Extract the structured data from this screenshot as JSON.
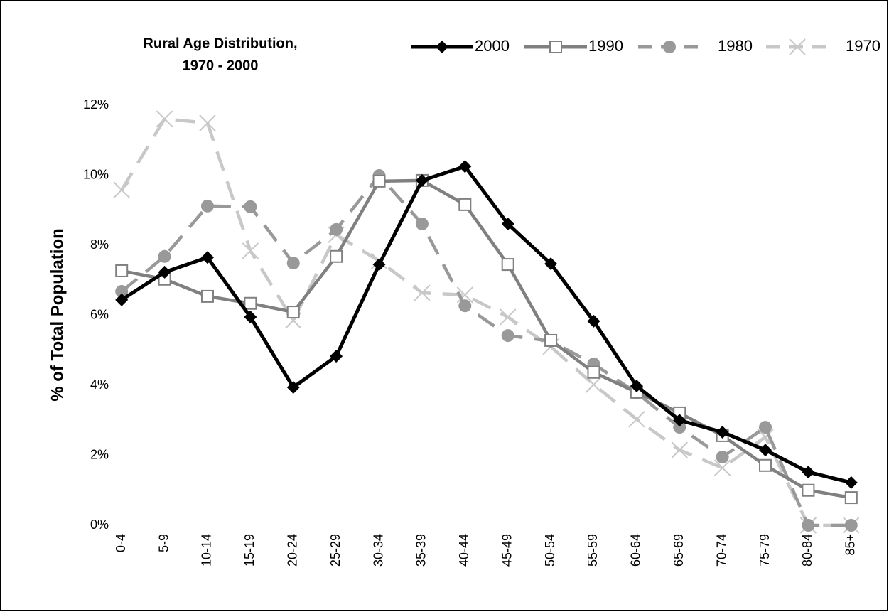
{
  "chart_data": {
    "type": "line",
    "title": [
      "Rural Age Distribution,",
      "1970 - 2000"
    ],
    "y_label": "% of Total Population",
    "categories": [
      "0-4",
      "5-9",
      "10-14",
      "15-19",
      "20-24",
      "25-29",
      "30-34",
      "35-39",
      "40-44",
      "45-49",
      "50-54",
      "55-59",
      "60-64",
      "65-69",
      "70-74",
      "75-79",
      "80-84",
      "85+"
    ],
    "series": [
      {
        "name": "2000",
        "color": "#000000",
        "marker": "diamond",
        "dashed": false,
        "values": [
          6.44,
          7.23,
          7.65,
          5.95,
          3.94,
          4.83,
          7.45,
          9.85,
          10.25,
          8.61,
          7.47,
          5.83,
          3.98,
          3.0,
          2.66,
          2.15,
          1.52,
          1.22
        ]
      },
      {
        "name": "1990",
        "color": "#808080",
        "marker": "square",
        "dashed": false,
        "values": [
          7.27,
          7.03,
          6.54,
          6.34,
          6.09,
          7.68,
          9.83,
          9.85,
          9.16,
          7.45,
          5.28,
          4.37,
          3.8,
          3.21,
          2.56,
          1.71,
          1.0,
          0.79
        ]
      },
      {
        "name": "1980",
        "color": "#999999",
        "marker": "circle",
        "dashed": true,
        "values": [
          6.68,
          7.68,
          9.12,
          9.1,
          7.49,
          8.45,
          9.99,
          8.61,
          6.27,
          5.42,
          5.26,
          4.61,
          3.78,
          2.8,
          1.95,
          2.8,
          0,
          0
        ]
      },
      {
        "name": "1970",
        "color": "#c8c8c8",
        "marker": "x",
        "dashed": true,
        "values": [
          9.58,
          11.61,
          11.49,
          7.84,
          5.85,
          8.3,
          7.55,
          6.64,
          6.58,
          5.95,
          5.1,
          4.02,
          3.03,
          2.15,
          1.64,
          2.52,
          0,
          0
        ]
      }
    ],
    "ylim": [
      0,
      12
    ],
    "yticks": [
      {
        "value": 0,
        "label": "0%"
      },
      {
        "value": 2,
        "label": "2%"
      },
      {
        "value": 4,
        "label": "4%"
      },
      {
        "value": 6,
        "label": "6%"
      },
      {
        "value": 8,
        "label": "8%"
      },
      {
        "value": 10,
        "label": "10%"
      },
      {
        "value": 12,
        "label": "12%"
      }
    ],
    "grid": false
  }
}
